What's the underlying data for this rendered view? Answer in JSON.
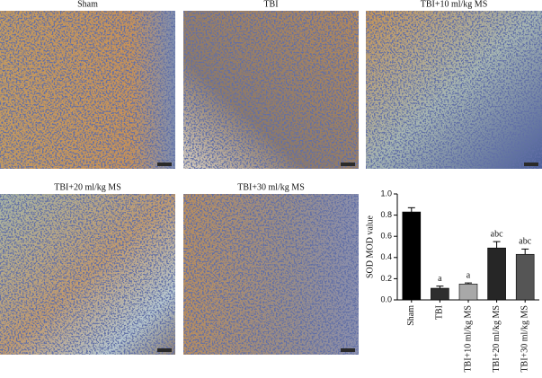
{
  "panels": [
    {
      "label": "Sham"
    },
    {
      "label": "TBI"
    },
    {
      "label": "TBI+10 ml/kg MS"
    },
    {
      "label": "TBI+20 ml/kg MS"
    },
    {
      "label": "TBI+30 ml/kg MS"
    }
  ],
  "chart_data": {
    "type": "bar",
    "y_label": "SOD MOD value",
    "categories": [
      "Sham",
      "TBI",
      "TBI+10 ml/kg MS",
      "TBI+20 ml/kg MS",
      "TBI+30 ml/kg MS"
    ],
    "values": [
      0.83,
      0.11,
      0.15,
      0.49,
      0.43
    ],
    "errors": [
      0.04,
      0.02,
      0.01,
      0.06,
      0.05
    ],
    "annotations": [
      null,
      "a",
      "a",
      "abc",
      "abc"
    ],
    "colors": [
      "#000000",
      "#2e2e2e",
      "#a8a8a8",
      "#262626",
      "#555555"
    ],
    "ylim": [
      0,
      1
    ],
    "yticks": [
      {
        "value": 0,
        "label": "0.0"
      },
      {
        "value": 0.2,
        "label": "0.2"
      },
      {
        "value": 0.4,
        "label": "0.4"
      },
      {
        "value": 0.6,
        "label": "0.6"
      },
      {
        "value": 0.8,
        "label": "0.8"
      },
      {
        "value": 1,
        "label": "1.0"
      }
    ]
  }
}
